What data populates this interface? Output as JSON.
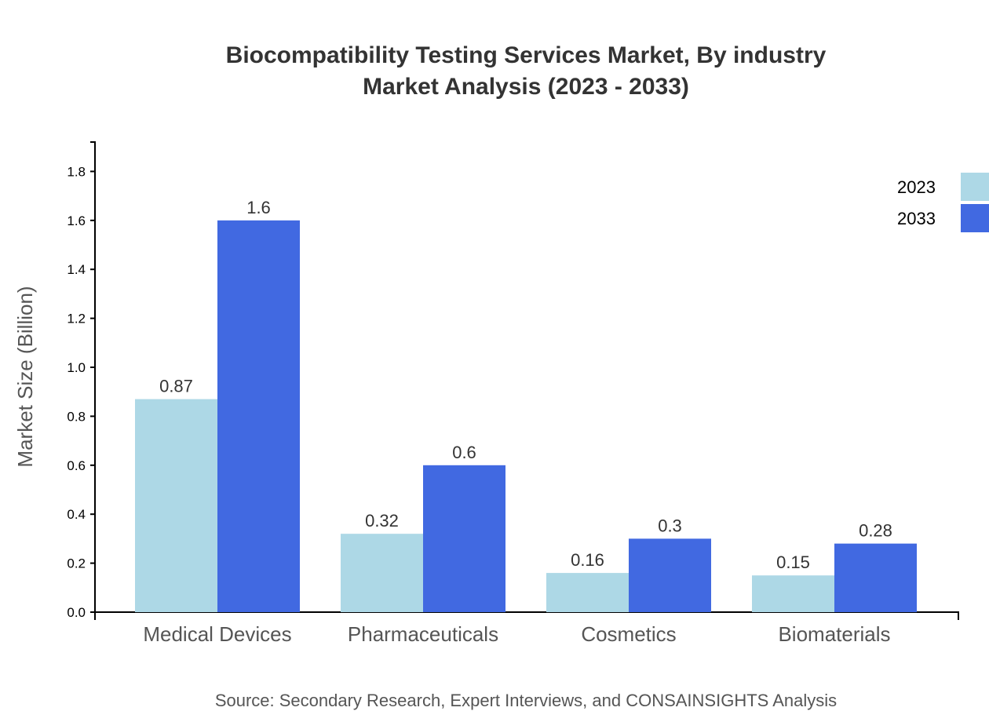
{
  "chart_data": {
    "type": "bar",
    "title": "Biocompatibility Testing Services Market, By industry",
    "subtitle": "Market Analysis (2023 - 2033)",
    "xlabel": "",
    "ylabel": "Market Size (Billion)",
    "categories": [
      "Medical Devices",
      "Pharmaceuticals",
      "Cosmetics",
      "Biomaterials"
    ],
    "series": [
      {
        "name": "2023",
        "color": "#ADD8E6",
        "values": [
          0.87,
          0.32,
          0.16,
          0.15
        ]
      },
      {
        "name": "2033",
        "color": "#4169E1",
        "values": [
          1.6,
          0.6,
          0.3,
          0.28
        ]
      }
    ],
    "ylim": [
      0,
      1.92
    ],
    "yticks": [
      "0.0",
      "0.2",
      "0.4",
      "0.6",
      "0.8",
      "1.0",
      "1.2",
      "1.4",
      "1.6",
      "1.8"
    ],
    "grid": false,
    "legend": "top-right",
    "source": "Source: Secondary Research, Expert Interviews, and CONSAINSIGHTS Analysis"
  }
}
